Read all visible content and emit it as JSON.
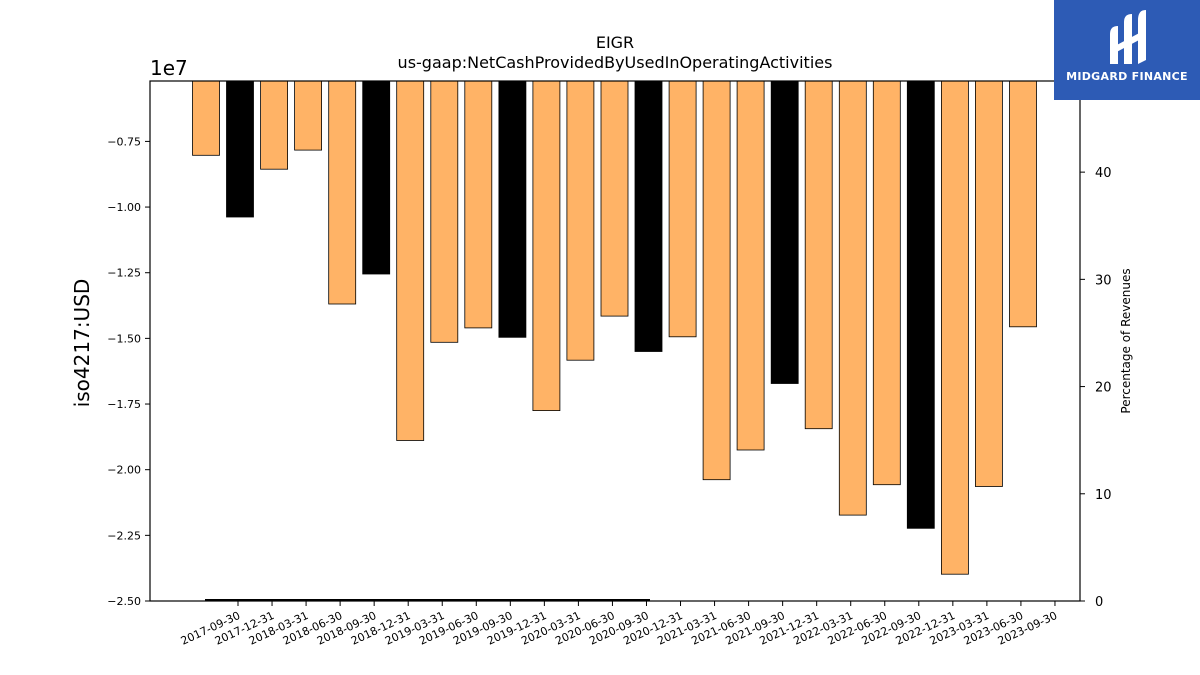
{
  "brand": {
    "name": "MIDGARD FINANCE",
    "color": "#2d5bb5"
  },
  "chart_data": {
    "type": "bar",
    "title": "EIGR",
    "subtitle": "us-gaap:NetCashProvidedByUsedInOperatingActivities",
    "ylabel": "iso4217:USD",
    "y_multiplier": "1e7",
    "y2label": "Percentage of Revenues",
    "categories": [
      "2017-09-30",
      "2017-12-31",
      "2018-03-31",
      "2018-06-30",
      "2018-09-30",
      "2018-12-31",
      "2019-03-31",
      "2019-06-30",
      "2019-09-30",
      "2019-12-31",
      "2020-03-31",
      "2020-06-30",
      "2020-09-30",
      "2020-12-31",
      "2021-03-31",
      "2021-06-30",
      "2021-09-30",
      "2021-12-31",
      "2022-03-31",
      "2022-06-30",
      "2022-09-30",
      "2022-12-31",
      "2023-03-31",
      "2023-06-30",
      "2023-09-30"
    ],
    "values": [
      -8030000,
      -10380000,
      -8560000,
      -7830000,
      -13690000,
      -12550000,
      -18890000,
      -15150000,
      -14600000,
      -14960000,
      -17750000,
      -15830000,
      -14150000,
      -15500000,
      -14940000,
      -20380000,
      -19250000,
      -16720000,
      -18440000,
      -21730000,
      -20570000,
      -22230000,
      -23980000,
      -20640000,
      -14560000
    ],
    "bar_colors": [
      "#ffb366",
      "#000000",
      "#ffb366",
      "#ffb366",
      "#ffb366",
      "#000000",
      "#ffb366",
      "#ffb366",
      "#ffb366",
      "#000000",
      "#ffb366",
      "#ffb366",
      "#ffb366",
      "#000000",
      "#ffb366",
      "#ffb366",
      "#ffb366",
      "#000000",
      "#ffb366",
      "#ffb366",
      "#ffb366",
      "#000000",
      "#ffb366",
      "#ffb366",
      "#ffb366"
    ],
    "ylim": [
      -25000000,
      -5200000
    ],
    "yticks": [
      -7500000,
      -10000000,
      -12500000,
      -15000000,
      -17500000,
      -20000000,
      -22500000,
      -25000000
    ],
    "ytick_labels": [
      "−0.75",
      "−1.00",
      "−1.25",
      "−1.50",
      "−1.75",
      "−2.00",
      "−2.25",
      "−2.50"
    ],
    "y2lim": [
      0,
      48.5
    ],
    "y2ticks": [
      0,
      10,
      20,
      30,
      40
    ],
    "y2tick_labels": [
      "0",
      "10",
      "20",
      "30",
      "40"
    ],
    "grid": false,
    "colors": {
      "annual": "#000000",
      "quarterly": "#ffb366"
    }
  }
}
